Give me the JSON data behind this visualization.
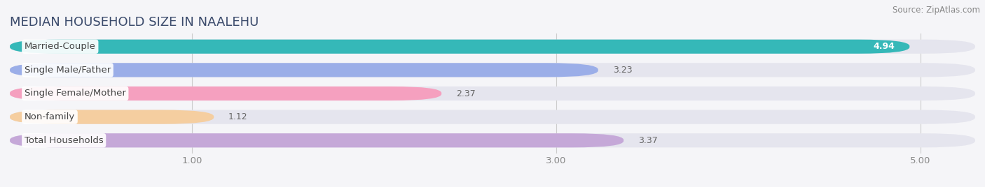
{
  "title": "MEDIAN HOUSEHOLD SIZE IN NAALEHU",
  "source": "Source: ZipAtlas.com",
  "categories": [
    "Married-Couple",
    "Single Male/Father",
    "Single Female/Mother",
    "Non-family",
    "Total Households"
  ],
  "values": [
    4.94,
    3.23,
    2.37,
    1.12,
    3.37
  ],
  "bar_colors": [
    "#35b8b8",
    "#9baee8",
    "#f5a0bf",
    "#f5cea0",
    "#c5a8d8"
  ],
  "xlim": [
    0.0,
    5.3
  ],
  "xdata_min": 0.0,
  "xdata_max": 5.0,
  "xticks": [
    1.0,
    3.0,
    5.0
  ],
  "xtick_labels": [
    "1.00",
    "3.00",
    "5.00"
  ],
  "background_color": "#f5f5f8",
  "bar_bg_color": "#e5e5ee",
  "title_fontsize": 13,
  "label_fontsize": 9.5,
  "value_fontsize": 9,
  "source_fontsize": 8.5,
  "title_color": "#3a4a6b",
  "label_color": "#444444",
  "value_color_inside": "#ffffff",
  "value_color_outside": "#666666"
}
